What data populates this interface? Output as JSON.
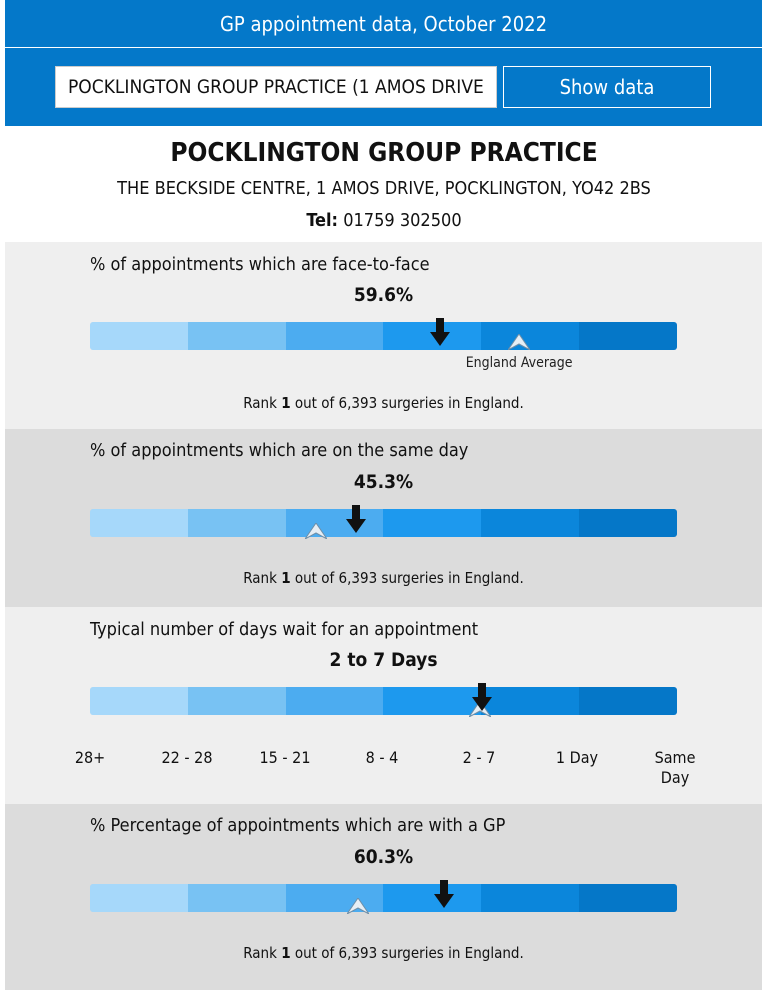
{
  "header": {
    "title": "GP appointment data, October 2022"
  },
  "search": {
    "value": "POCKLINGTON GROUP PRACTICE (1 AMOS DRIVE",
    "button_label": "Show data"
  },
  "practice": {
    "name": "POCKLINGTON GROUP PRACTICE",
    "address": "THE BECKSIDE CENTRE, 1 AMOS DRIVE, POCKLINGTON, YO42 2BS",
    "tel_label": "Tel:",
    "tel_value": "01759 302500"
  },
  "scale_colors": [
    "#a6d8fa",
    "#78c2f3",
    "#4cacf0",
    "#1d99ee",
    "#0b86db",
    "#0577c8"
  ],
  "metrics": [
    {
      "title": "% of appointments which are face-to-face",
      "value": "59.6%",
      "marker_fraction": 0.596,
      "average_fraction": 0.731,
      "average_label": "England Average",
      "rank_prefix": "Rank ",
      "rank_number": "1",
      "rank_suffix": " out of 6,393 surgeries in England."
    },
    {
      "title": "% of appointments which are on the same day",
      "value": "45.3%",
      "marker_fraction": 0.453,
      "average_fraction": 0.385,
      "rank_prefix": "Rank ",
      "rank_number": "1",
      "rank_suffix": " out of 6,393 surgeries in England."
    },
    {
      "title": "Typical number of days wait for an appointment",
      "value": "2 to 7 Days",
      "marker_fraction": 0.667,
      "average_fraction": 0.664,
      "scale_labels": [
        "28+",
        "22 - 28",
        "15 - 21",
        "8 - 4",
        "2 - 7",
        "1 Day",
        "Same Day"
      ]
    },
    {
      "title": "% Percentage of appointments which are with a GP",
      "value": "60.3%",
      "marker_fraction": 0.603,
      "average_fraction": 0.456,
      "rank_prefix": "Rank ",
      "rank_number": "1",
      "rank_suffix": " out of 6,393 surgeries in England."
    }
  ]
}
